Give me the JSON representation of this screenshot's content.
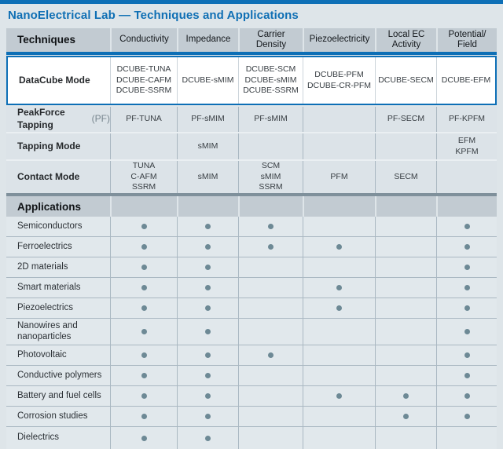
{
  "page": {
    "title": "NanoElectrical Lab — Techniques and Applications"
  },
  "colors": {
    "accent_blue": "#0d6fb6",
    "header_bg": "#c2cbd2",
    "row_bg": "#e1e8ec",
    "mode_row_bg": "#dce3e8",
    "dark_divider": "#7f909b",
    "dot": "#6d8995"
  },
  "techniques": {
    "header": {
      "label": "Techniques",
      "columns": [
        "Conductivity",
        "Impedance",
        "Carrier\nDensity",
        "Piezoelectricity",
        "Local EC\nActivity",
        "Potential/\nField"
      ]
    },
    "rows": [
      {
        "label": "DataCube Mode",
        "suffix": "",
        "highlighted": true,
        "cells": [
          "DCUBE-TUNA\nDCUBE-CAFM\nDCUBE-SSRM",
          "DCUBE-sMIM",
          "DCUBE-SCM\nDCUBE-sMIM\nDCUBE-SSRM",
          "DCUBE-PFM\nDCUBE-CR-PFM",
          "DCUBE-SECM",
          "DCUBE-EFM"
        ]
      },
      {
        "label": "PeakForce Tapping",
        "suffix": "(PF)",
        "highlighted": false,
        "cells": [
          "PF-TUNA",
          "PF-sMIM",
          "PF-sMIM",
          "",
          "PF-SECM",
          "PF-KPFM"
        ]
      },
      {
        "label": "Tapping Mode",
        "suffix": "",
        "highlighted": false,
        "cells": [
          "",
          "sMIM",
          "",
          "",
          "",
          "EFM\nKPFM"
        ]
      },
      {
        "label": "Contact Mode",
        "suffix": "",
        "highlighted": false,
        "cells": [
          "TUNA\nC-AFM\nSSRM",
          "sMIM",
          "SCM\nsMIM\nSSRM",
          "PFM",
          "SECM",
          ""
        ]
      }
    ]
  },
  "applications": {
    "label": "Applications",
    "rows": [
      {
        "label": "Semiconductors",
        "dots": [
          1,
          1,
          1,
          0,
          0,
          1
        ]
      },
      {
        "label": "Ferroelectrics",
        "dots": [
          1,
          1,
          1,
          1,
          0,
          1
        ]
      },
      {
        "label": "2D materials",
        "dots": [
          1,
          1,
          0,
          0,
          0,
          1
        ]
      },
      {
        "label": "Smart materials",
        "dots": [
          1,
          1,
          0,
          1,
          0,
          1
        ]
      },
      {
        "label": "Piezoelectrics",
        "dots": [
          1,
          1,
          0,
          1,
          0,
          1
        ]
      },
      {
        "label": "Nanowires and\nnanoparticles",
        "dots": [
          1,
          1,
          0,
          0,
          0,
          1
        ]
      },
      {
        "label": "Photovoltaic",
        "dots": [
          1,
          1,
          1,
          0,
          0,
          1
        ]
      },
      {
        "label": "Conductive polymers",
        "dots": [
          1,
          1,
          0,
          0,
          0,
          1
        ]
      },
      {
        "label": "Battery and fuel cells",
        "dots": [
          1,
          1,
          0,
          1,
          1,
          1
        ]
      },
      {
        "label": "Corrosion studies",
        "dots": [
          1,
          1,
          0,
          0,
          1,
          1
        ]
      },
      {
        "label": "Dielectrics",
        "dots": [
          1,
          1,
          0,
          0,
          0,
          0
        ]
      }
    ]
  }
}
